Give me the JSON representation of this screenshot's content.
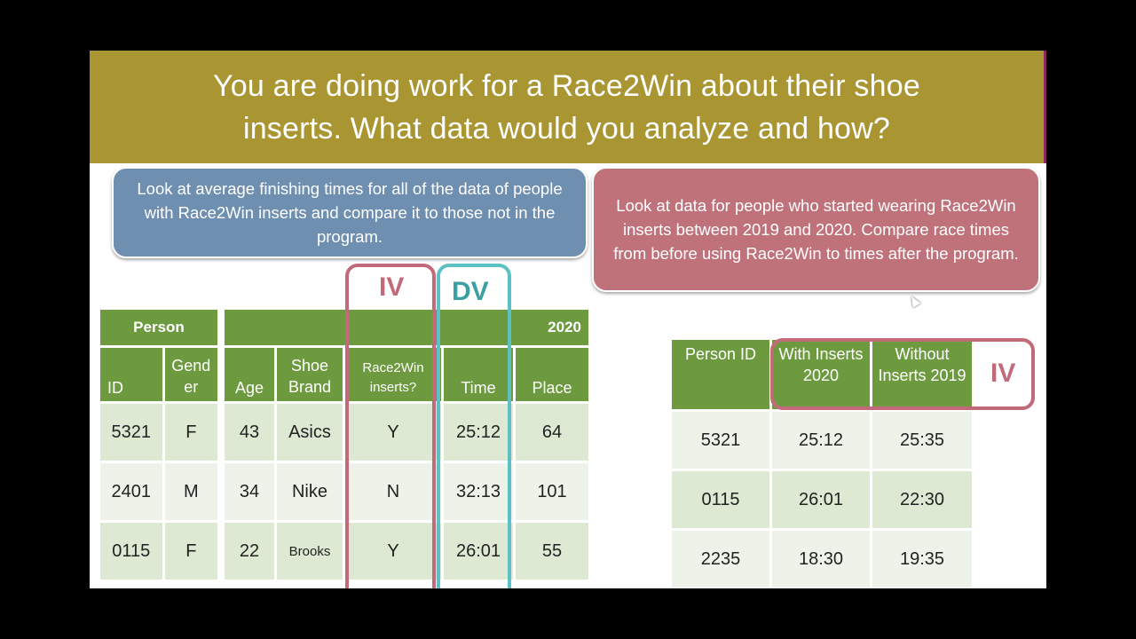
{
  "slide": {
    "title_line1": "You are doing work for a Race2Win about their shoe",
    "title_line2": "inserts.  What data would you analyze and how?",
    "callout_left": "Look at average finishing times for all of the data of people with Race2Win inserts and compare it to those not in the program.",
    "callout_right": "Look at data for people who started wearing Race2Win inserts between 2019 and 2020. Compare race times from before using Race2Win to times after the program.",
    "label_iv": "IV",
    "label_dv": "DV",
    "label_iv_right": "IV"
  },
  "table_left": {
    "group_person": "Person",
    "group_year": "2020",
    "headers": [
      "ID",
      "Gend er",
      "Age",
      "Shoe Brand",
      "Race2Win inserts?",
      "Time",
      "Place"
    ],
    "rows": [
      [
        "5321",
        "F",
        "43",
        "Asics",
        "Y",
        "25:12",
        "64"
      ],
      [
        "2401",
        "M",
        "34",
        "Nike",
        "N",
        "32:13",
        "101"
      ],
      [
        "0115",
        "F",
        "22",
        "Brooks",
        "Y",
        "26:01",
        "55"
      ]
    ]
  },
  "table_right": {
    "headers": [
      "Person ID",
      "With Inserts 2020",
      "Without Inserts 2019"
    ],
    "rows": [
      [
        "5321",
        "25:12",
        "25:35"
      ],
      [
        "0115",
        "26:01",
        "22:30"
      ],
      [
        "2235",
        "18:30",
        "19:35"
      ]
    ]
  },
  "colors": {
    "title_bg": "#a99531",
    "blue_callout": "#6f8fb0",
    "red_callout": "#c0727b",
    "table_header": "#6d9a3f",
    "iv_frame": "#c26a7a",
    "dv_frame": "#5bc1c4"
  }
}
